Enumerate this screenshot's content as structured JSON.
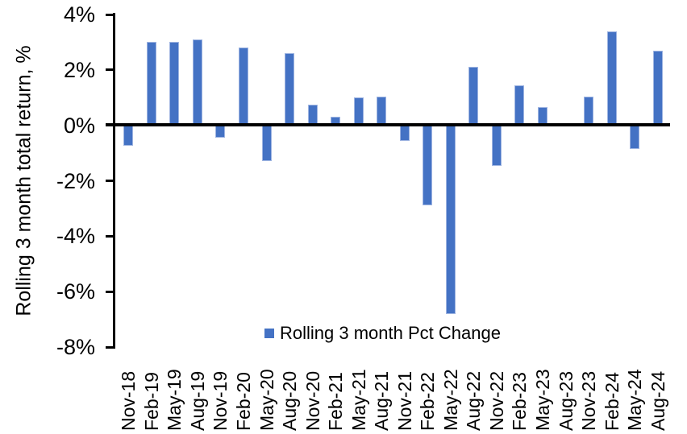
{
  "chart": {
    "legend_label": "Rolling 3 month Pct Change",
    "ylabel": "Rolling 3 month total return, %"
  },
  "chart_data": {
    "type": "bar",
    "title": "",
    "xlabel": "",
    "ylabel": "Rolling 3 month total return, %",
    "ylim": [
      -8,
      4
    ],
    "grid": false,
    "legend_position": "bottom-center",
    "ytick_labels": [
      "4%",
      "2%",
      "0%",
      "-2%",
      "-4%",
      "-6%",
      "-8%"
    ],
    "ytick_values": [
      4,
      2,
      0,
      -2,
      -4,
      -6,
      -8
    ],
    "categories": [
      "Nov-18",
      "Feb-19",
      "May-19",
      "Aug-19",
      "Nov-19",
      "Feb-20",
      "May-20",
      "Aug-20",
      "Nov-20",
      "Feb-21",
      "May-21",
      "Aug-21",
      "Nov-21",
      "Feb-22",
      "May-22",
      "Aug-22",
      "Nov-22",
      "Feb-23",
      "May-23",
      "Aug-23",
      "Nov-23",
      "Feb-24",
      "May-24",
      "Aug-24"
    ],
    "series": [
      {
        "name": "Rolling 3 month Pct Change",
        "values": [
          -0.75,
          3.0,
          3.0,
          3.1,
          -0.45,
          2.8,
          -1.3,
          2.6,
          0.75,
          0.3,
          1.0,
          1.05,
          -0.55,
          -2.9,
          -6.8,
          2.1,
          -1.45,
          1.45,
          0.65,
          0.0,
          1.05,
          3.4,
          -0.85,
          2.7
        ]
      }
    ],
    "bar_color": "#4472C4",
    "bar_edge_color": "#9EB4E1",
    "axis_color": "#000000",
    "background": "#FFFFFF"
  }
}
